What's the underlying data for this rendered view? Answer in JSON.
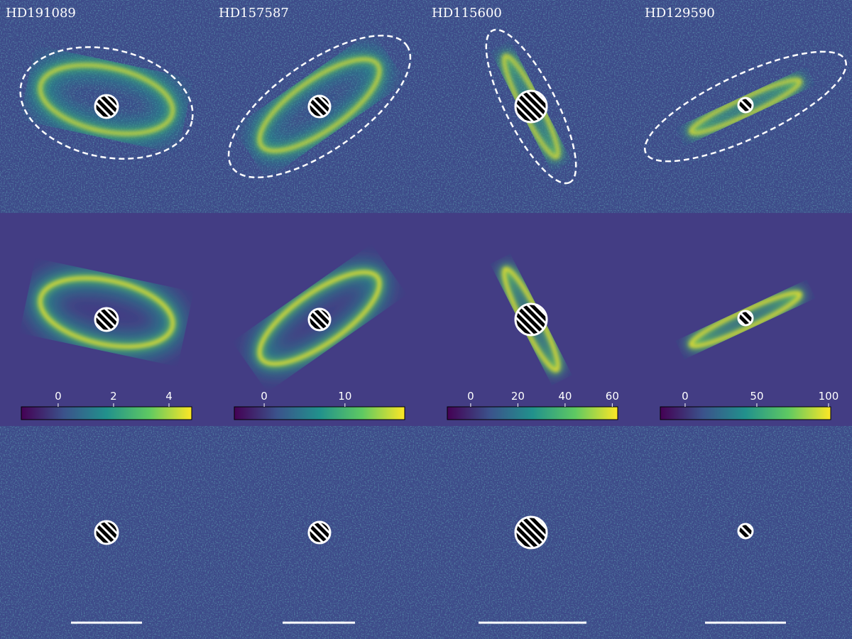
{
  "panels": [
    {
      "title": "HD191089",
      "colorbar": {
        "lim": [
          -1.33,
          4.82
        ],
        "ticks": [
          0,
          2,
          4
        ]
      }
    },
    {
      "title": "HD157587",
      "colorbar": {
        "lim": [
          -3.7,
          17.4
        ],
        "ticks": [
          0,
          10
        ]
      }
    },
    {
      "title": "HD115600",
      "colorbar": {
        "lim": [
          -9.9,
          62.3
        ],
        "ticks": [
          0,
          20,
          40,
          60
        ]
      }
    },
    {
      "title": "HD129590",
      "colorbar": {
        "lim": [
          -17.3,
          101.5
        ],
        "ticks": [
          0,
          50,
          100
        ]
      }
    }
  ]
}
